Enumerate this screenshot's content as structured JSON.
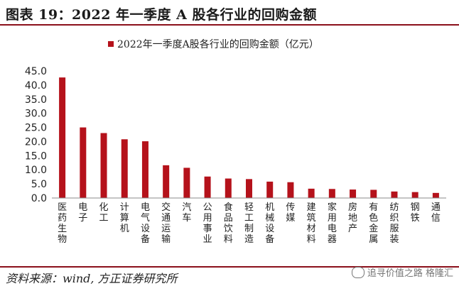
{
  "header": {
    "title": "图表 19：2022 年一季度 A 股各行业的回购金额"
  },
  "footer": {
    "source": "资料来源：wind, 方正证券研究所",
    "watermark": "追寻价值之路 格隆汇"
  },
  "colors": {
    "bar": "#b5121b",
    "rule": "#8b0f1a"
  },
  "chart_data": {
    "type": "bar",
    "title": "",
    "xlabel": "",
    "ylabel": "",
    "ylim": [
      0,
      45
    ],
    "yticks": [
      "0.0",
      "5.0",
      "10.0",
      "15.0",
      "20.0",
      "25.0",
      "30.0",
      "35.0",
      "40.0",
      "45.0"
    ],
    "legend": {
      "position": "top-center"
    },
    "series": [
      {
        "name": "2022年一季度A股各行业的回购金额（亿元）",
        "values": [
          42.7,
          25.0,
          23.0,
          20.8,
          20.1,
          11.6,
          10.7,
          7.6,
          6.9,
          6.7,
          5.8,
          5.6,
          3.3,
          3.2,
          3.0,
          2.9,
          2.3,
          2.1,
          1.8
        ]
      }
    ],
    "categories": [
      "医药生物",
      "电子",
      "化工",
      "计算机",
      "电气设备",
      "交通运输",
      "汽车",
      "公用事业",
      "食品饮料",
      "轻工制造",
      "机械设备",
      "传媒",
      "建筑材料",
      "家用电器",
      "房地产",
      "有色金属",
      "纺织服装",
      "钢铁",
      "通信"
    ]
  }
}
